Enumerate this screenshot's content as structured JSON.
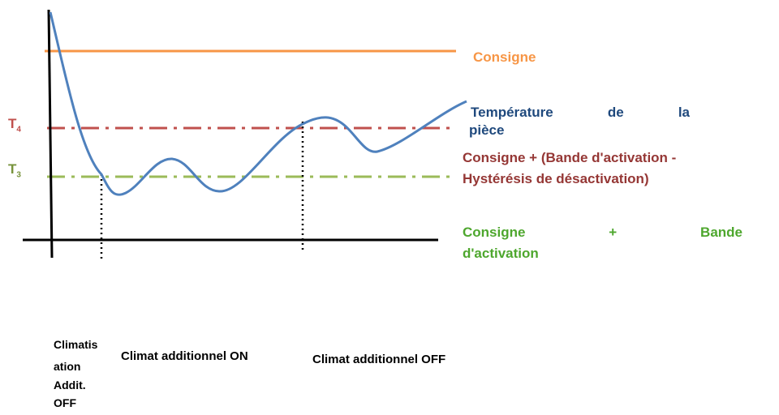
{
  "labels": {
    "consigne": "Consigne",
    "temperature": [
      "Température de la",
      "pièce"
    ],
    "t4": {
      "base": "T",
      "sub": "4"
    },
    "t3": {
      "base": "T",
      "sub": "3"
    },
    "consigne_hysteresis": [
      "Consigne + (Bande d'activation -",
      "Hystérésis de désactivation)"
    ],
    "consigne_bande": [
      "Consigne + Bande",
      "d'activation"
    ],
    "clim_off": [
      "Climatis",
      "ation",
      "Addit.",
      "OFF"
    ],
    "clim_on_add": "Climat additionnel ON",
    "clim_off_add": "Climat additionnel OFF"
  }
}
